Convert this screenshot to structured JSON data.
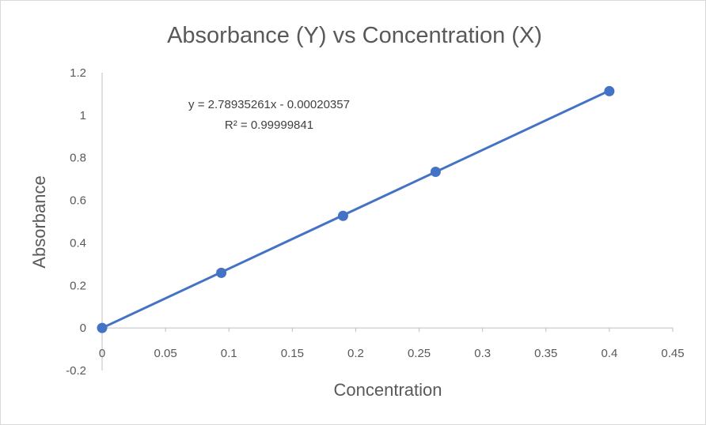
{
  "chart_data": {
    "type": "scatter",
    "title": "Absorbance (Y) vs Concentration (X)",
    "xlabel": "Concentration",
    "ylabel": "Absorbance",
    "xlim": [
      0,
      0.45
    ],
    "ylim": [
      -0.2,
      1.2
    ],
    "x_ticks": [
      "0",
      "0.05",
      "0.1",
      "0.15",
      "0.2",
      "0.25",
      "0.3",
      "0.35",
      "0.4",
      "0.45"
    ],
    "x_tick_values": [
      0,
      0.05,
      0.1,
      0.15,
      0.2,
      0.25,
      0.3,
      0.35,
      0.4,
      0.45
    ],
    "y_ticks": [
      "-0.2",
      "0",
      "0.2",
      "0.4",
      "0.6",
      "0.8",
      "1",
      "1.2"
    ],
    "y_tick_values": [
      -0.2,
      0,
      0.2,
      0.4,
      0.6,
      0.8,
      1,
      1.2
    ],
    "grid": false,
    "series": [
      {
        "x": [
          0,
          0.094,
          0.19,
          0.263,
          0.4
        ],
        "y": [
          0,
          0.259,
          0.527,
          0.734,
          1.113
        ],
        "color": "#4472C4"
      }
    ],
    "trendline": {
      "type": "linear",
      "slope": 2.78935261,
      "intercept": -0.00020357,
      "color": "#4472C4",
      "equation_label": "y = 2.78935261x - 0.00020357",
      "r2_label": "R² = 0.99999841"
    }
  }
}
